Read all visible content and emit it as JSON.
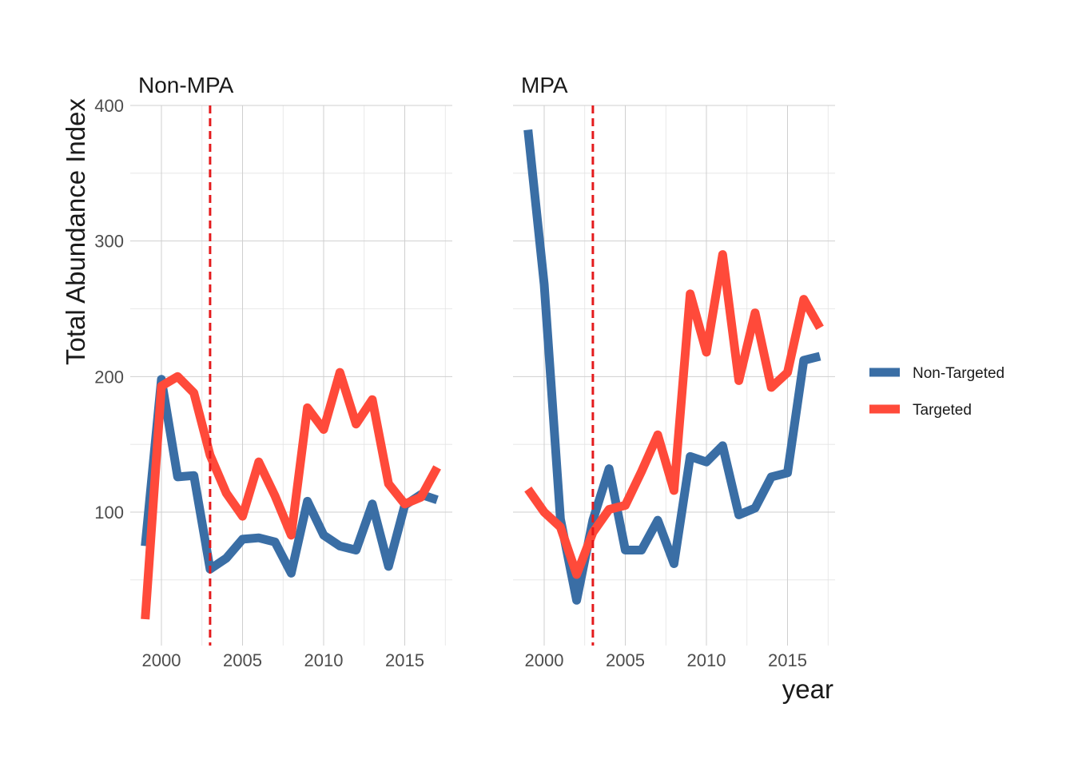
{
  "chart_data": {
    "type": "line",
    "xlabel": "year",
    "ylabel": "Total Abundance Index",
    "x_ticks": [
      2000,
      2005,
      2010,
      2015
    ],
    "y_ticks": [
      100,
      200,
      300,
      400
    ],
    "xlim": [
      1998.2,
      2017.6
    ],
    "ylim": [
      5,
      400
    ],
    "reference_line_x": 2003,
    "reference_line_color": "#e41a1c",
    "legend_position": "right",
    "series_styles": [
      {
        "name": "Non-Targeted",
        "color": "#3a6ea5"
      },
      {
        "name": "Targeted",
        "color": "#ff4a3a"
      }
    ],
    "panels": [
      {
        "title": "Non-MPA",
        "x": [
          1999,
          2000,
          2001,
          2002,
          2003,
          2004,
          2005,
          2006,
          2007,
          2008,
          2009,
          2010,
          2011,
          2012,
          2013,
          2014,
          2015,
          2016,
          2017
        ],
        "series": [
          {
            "name": "Non-Targeted",
            "values": [
              75,
              198,
              126,
              127,
              58,
              66,
              80,
              81,
              78,
              55,
              108,
              83,
              75,
              72,
              106,
              60,
              105,
              113,
              109
            ]
          },
          {
            "name": "Targeted",
            "values": [
              21,
              193,
              200,
              188,
              142,
              114,
              97,
              137,
              112,
              83,
              177,
              161,
              203,
              165,
              183,
              121,
              106,
              111,
              133
            ]
          }
        ]
      },
      {
        "title": "MPA",
        "x": [
          1999,
          2000,
          2001,
          2002,
          2003,
          2004,
          2005,
          2006,
          2007,
          2008,
          2009,
          2010,
          2011,
          2012,
          2013,
          2014,
          2015,
          2016,
          2017
        ],
        "series": [
          {
            "name": "Non-Targeted",
            "values": [
              382,
              268,
              95,
              35,
              94,
              132,
              72,
              72,
              94,
              62,
              141,
              137,
              149,
              98,
              103,
              126,
              129,
              212,
              215
            ]
          },
          {
            "name": "Targeted",
            "values": [
              117,
              100,
              89,
              54,
              85,
              102,
              105,
              130,
              157,
              116,
              261,
              218,
              290,
              197,
              247,
              192,
              203,
              257,
              236
            ]
          }
        ]
      }
    ]
  }
}
